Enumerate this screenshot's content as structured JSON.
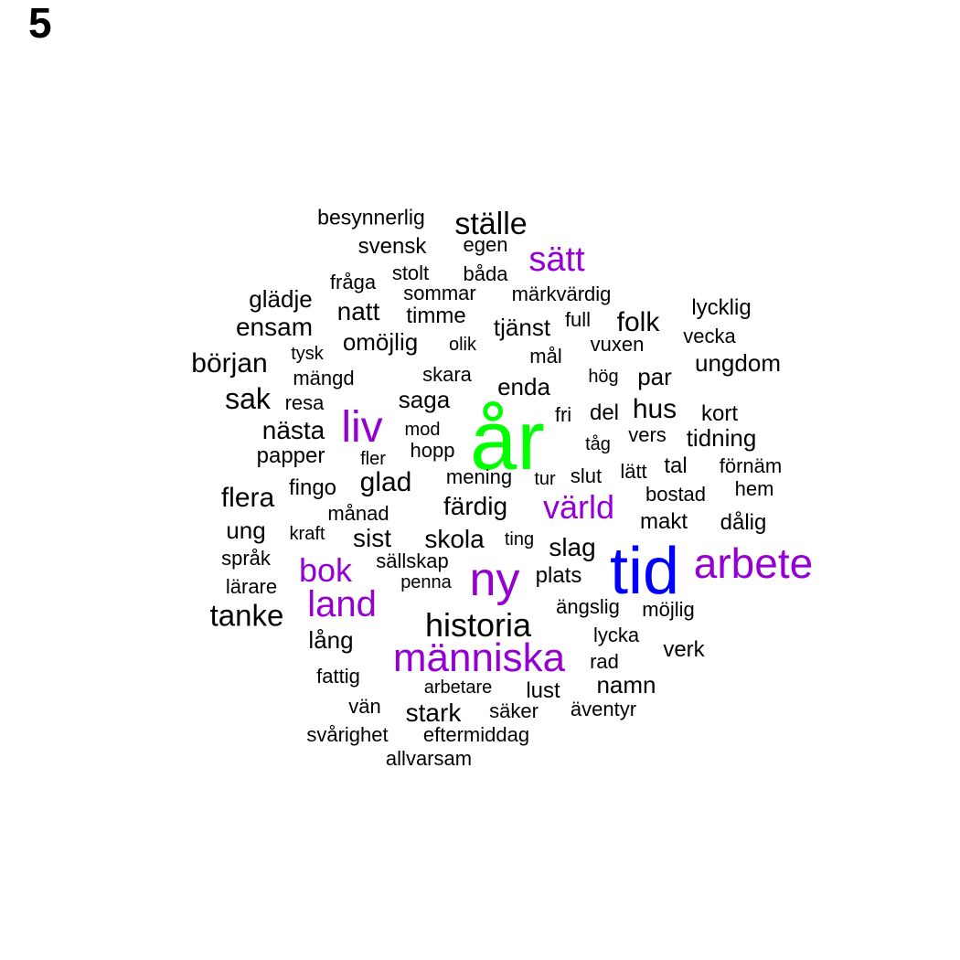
{
  "panel_label": "5",
  "colors": {
    "default": "#000000",
    "purple": "#9400d3",
    "blue": "#0000ff",
    "green": "#00ff00"
  },
  "words": [
    {
      "text": "år",
      "color": "green"
    },
    {
      "text": "tid",
      "color": "blue"
    },
    {
      "text": "ny",
      "color": "purple"
    },
    {
      "text": "arbete",
      "color": "purple"
    },
    {
      "text": "människa",
      "color": "purple"
    },
    {
      "text": "liv",
      "color": "purple"
    },
    {
      "text": "land",
      "color": "purple"
    },
    {
      "text": "bok",
      "color": "purple"
    },
    {
      "text": "värld",
      "color": "purple"
    },
    {
      "text": "sätt",
      "color": "purple"
    },
    {
      "text": "ställe",
      "color": "default"
    },
    {
      "text": "historia",
      "color": "default"
    },
    {
      "text": "tanke",
      "color": "default"
    },
    {
      "text": "besynnerlig",
      "color": "default"
    },
    {
      "text": "svensk",
      "color": "default"
    },
    {
      "text": "egen",
      "color": "default"
    },
    {
      "text": "stolt",
      "color": "default"
    },
    {
      "text": "båda",
      "color": "default"
    },
    {
      "text": "fråga",
      "color": "default"
    },
    {
      "text": "glädje",
      "color": "default"
    },
    {
      "text": "sommar",
      "color": "default"
    },
    {
      "text": "märkvärdig",
      "color": "default"
    },
    {
      "text": "lycklig",
      "color": "default"
    },
    {
      "text": "natt",
      "color": "default"
    },
    {
      "text": "timme",
      "color": "default"
    },
    {
      "text": "ensam",
      "color": "default"
    },
    {
      "text": "tjänst",
      "color": "default"
    },
    {
      "text": "full",
      "color": "default"
    },
    {
      "text": "folk",
      "color": "default"
    },
    {
      "text": "vecka",
      "color": "default"
    },
    {
      "text": "omöjlig",
      "color": "default"
    },
    {
      "text": "olik",
      "color": "default"
    },
    {
      "text": "tysk",
      "color": "default"
    },
    {
      "text": "mål",
      "color": "default"
    },
    {
      "text": "vuxen",
      "color": "default"
    },
    {
      "text": "början",
      "color": "default"
    },
    {
      "text": "ungdom",
      "color": "default"
    },
    {
      "text": "mängd",
      "color": "default"
    },
    {
      "text": "skara",
      "color": "default"
    },
    {
      "text": "hög",
      "color": "default"
    },
    {
      "text": "par",
      "color": "default"
    },
    {
      "text": "enda",
      "color": "default"
    },
    {
      "text": "sak",
      "color": "default"
    },
    {
      "text": "resa",
      "color": "default"
    },
    {
      "text": "saga",
      "color": "default"
    },
    {
      "text": "hus",
      "color": "default"
    },
    {
      "text": "kort",
      "color": "default"
    },
    {
      "text": "fri",
      "color": "default"
    },
    {
      "text": "del",
      "color": "default"
    },
    {
      "text": "nästa",
      "color": "default"
    },
    {
      "text": "mod",
      "color": "default"
    },
    {
      "text": "vers",
      "color": "default"
    },
    {
      "text": "tidning",
      "color": "default"
    },
    {
      "text": "tåg",
      "color": "default"
    },
    {
      "text": "papper",
      "color": "default"
    },
    {
      "text": "hopp",
      "color": "default"
    },
    {
      "text": "fler",
      "color": "default"
    },
    {
      "text": "förnäm",
      "color": "default"
    },
    {
      "text": "tal",
      "color": "default"
    },
    {
      "text": "lätt",
      "color": "default"
    },
    {
      "text": "mening",
      "color": "default"
    },
    {
      "text": "tur",
      "color": "default"
    },
    {
      "text": "slut",
      "color": "default"
    },
    {
      "text": "fingo",
      "color": "default"
    },
    {
      "text": "glad",
      "color": "default"
    },
    {
      "text": "hem",
      "color": "default"
    },
    {
      "text": "flera",
      "color": "default"
    },
    {
      "text": "bostad",
      "color": "default"
    },
    {
      "text": "färdig",
      "color": "default"
    },
    {
      "text": "månad",
      "color": "default"
    },
    {
      "text": "makt",
      "color": "default"
    },
    {
      "text": "dålig",
      "color": "default"
    },
    {
      "text": "ung",
      "color": "default"
    },
    {
      "text": "kraft",
      "color": "default"
    },
    {
      "text": "sist",
      "color": "default"
    },
    {
      "text": "skola",
      "color": "default"
    },
    {
      "text": "ting",
      "color": "default"
    },
    {
      "text": "slag",
      "color": "default"
    },
    {
      "text": "språk",
      "color": "default"
    },
    {
      "text": "sällskap",
      "color": "default"
    },
    {
      "text": "lärare",
      "color": "default"
    },
    {
      "text": "penna",
      "color": "default"
    },
    {
      "text": "plats",
      "color": "default"
    },
    {
      "text": "ängslig",
      "color": "default"
    },
    {
      "text": "möjlig",
      "color": "default"
    },
    {
      "text": "lång",
      "color": "default"
    },
    {
      "text": "lycka",
      "color": "default"
    },
    {
      "text": "verk",
      "color": "default"
    },
    {
      "text": "rad",
      "color": "default"
    },
    {
      "text": "fattig",
      "color": "default"
    },
    {
      "text": "namn",
      "color": "default"
    },
    {
      "text": "arbetare",
      "color": "default"
    },
    {
      "text": "lust",
      "color": "default"
    },
    {
      "text": "vän",
      "color": "default"
    },
    {
      "text": "stark",
      "color": "default"
    },
    {
      "text": "säker",
      "color": "default"
    },
    {
      "text": "äventyr",
      "color": "default"
    },
    {
      "text": "svårighet",
      "color": "default"
    },
    {
      "text": "eftermiddag",
      "color": "default"
    },
    {
      "text": "allvarsam",
      "color": "default"
    }
  ]
}
